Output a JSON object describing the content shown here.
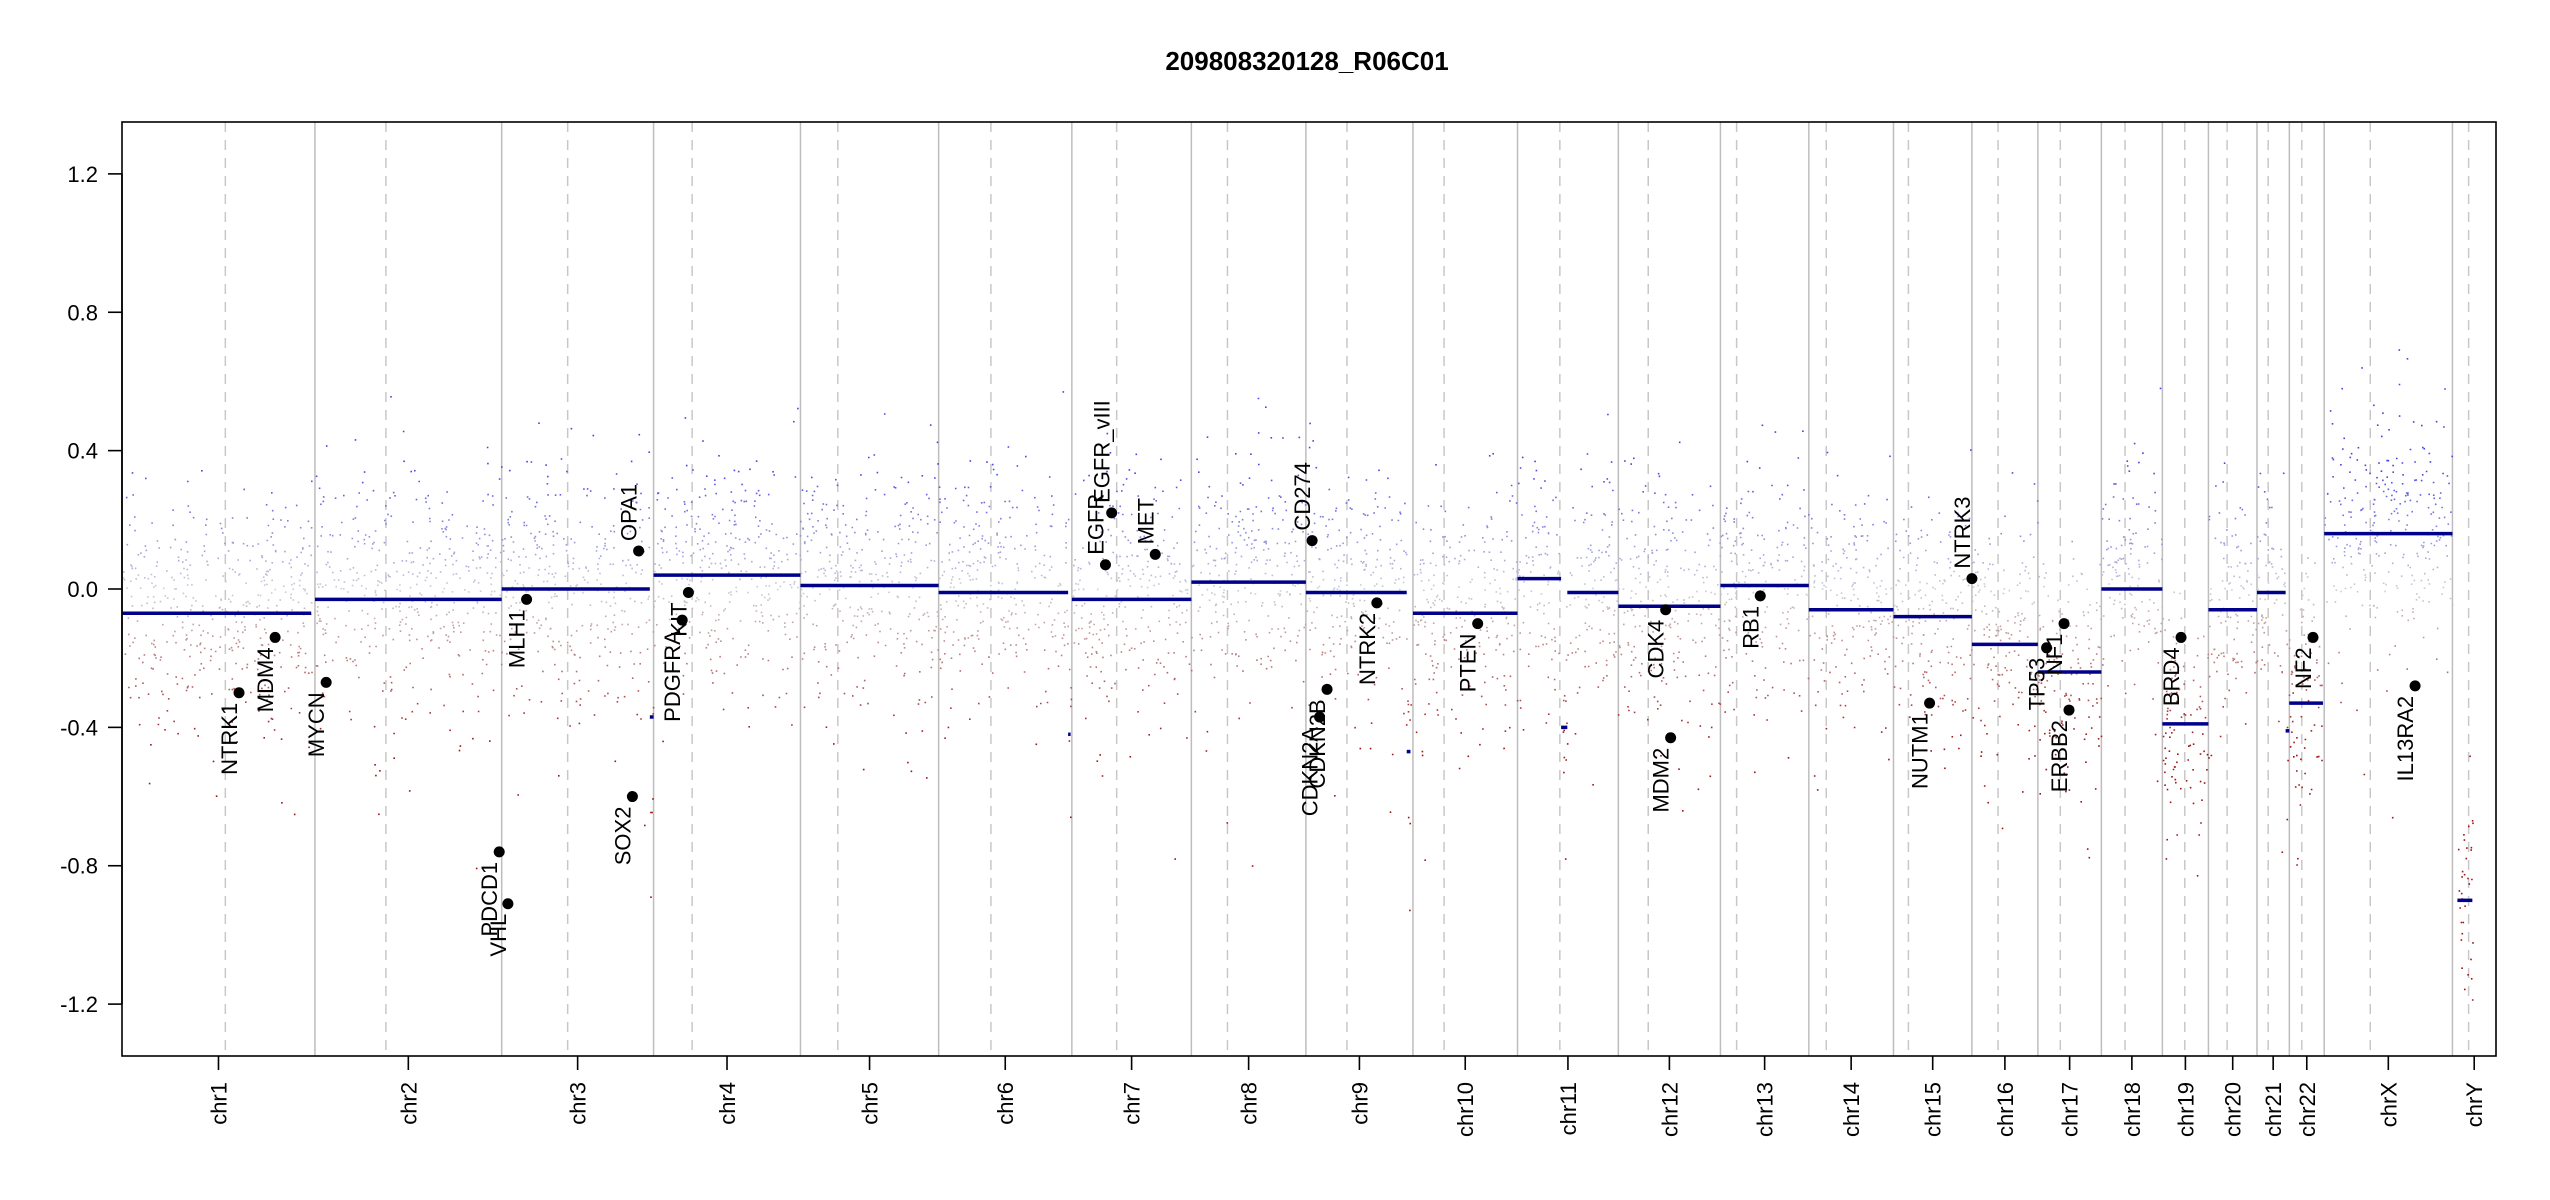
{
  "chart_data": {
    "type": "scatter",
    "title": "209808320128_R06C01",
    "xlabel": "",
    "ylabel": "",
    "ylim": [
      -1.35,
      1.35
    ],
    "yticks": [
      -1.2,
      -0.8,
      -0.4,
      0.0,
      0.4,
      0.8,
      1.2
    ],
    "ytick_labels": [
      "-1.2",
      "-0.8",
      "-0.4",
      "0.0",
      "0.4",
      "0.8",
      "1.2"
    ],
    "chromosomes": [
      {
        "name": "chr1",
        "start": 0,
        "end": 7.75,
        "centromere": 4.15
      },
      {
        "name": "chr2",
        "start": 7.75,
        "end": 15.25,
        "centromere": 10.6
      },
      {
        "name": "chr3",
        "start": 15.25,
        "end": 21.35,
        "centromere": 17.9
      },
      {
        "name": "chr4",
        "start": 21.35,
        "end": 27.25,
        "centromere": 22.9
      },
      {
        "name": "chr5",
        "start": 27.25,
        "end": 32.8,
        "centromere": 28.75
      },
      {
        "name": "chr6",
        "start": 32.8,
        "end": 38.15,
        "centromere": 34.9
      },
      {
        "name": "chr7",
        "start": 38.15,
        "end": 42.95,
        "centromere": 39.95
      },
      {
        "name": "chr8",
        "start": 42.95,
        "end": 47.55,
        "centromere": 44.4
      },
      {
        "name": "chr9",
        "start": 47.55,
        "end": 51.85,
        "centromere": 49.2
      },
      {
        "name": "chr10",
        "start": 51.85,
        "end": 56.05,
        "centromere": 53.1
      },
      {
        "name": "chr11",
        "start": 56.05,
        "end": 60.1,
        "centromere": 57.75
      },
      {
        "name": "chr12",
        "start": 60.1,
        "end": 64.2,
        "centromere": 61.3
      },
      {
        "name": "chr13",
        "start": 64.2,
        "end": 67.75,
        "centromere": 64.85
      },
      {
        "name": "chr14",
        "start": 67.75,
        "end": 71.15,
        "centromere": 68.45
      },
      {
        "name": "chr15",
        "start": 71.15,
        "end": 74.3,
        "centromere": 71.75
      },
      {
        "name": "chr16",
        "start": 74.3,
        "end": 76.95,
        "centromere": 75.35
      },
      {
        "name": "chr17",
        "start": 76.95,
        "end": 79.5,
        "centromere": 77.85
      },
      {
        "name": "chr18",
        "start": 79.5,
        "end": 81.95,
        "centromere": 80.45
      },
      {
        "name": "chr19",
        "start": 81.95,
        "end": 83.8,
        "centromere": 82.85
      },
      {
        "name": "chr20",
        "start": 83.8,
        "end": 85.75,
        "centromere": 84.55
      },
      {
        "name": "chr21",
        "start": 85.75,
        "end": 87.05,
        "centromere": 86.2
      },
      {
        "name": "chr22",
        "start": 87.05,
        "end": 88.45,
        "centromere": 87.55
      },
      {
        "name": "chrX",
        "start": 88.45,
        "end": 93.6,
        "centromere": 90.3
      },
      {
        "name": "chrY",
        "start": 93.6,
        "end": 95.35,
        "centromere": 94.25
      }
    ],
    "segments": [
      {
        "x0": 0,
        "x1": 7.6,
        "y": -0.07
      },
      {
        "x0": 7.75,
        "x1": 15.25,
        "y": -0.03
      },
      {
        "x0": 15.25,
        "x1": 21.2,
        "y": 0.0
      },
      {
        "x0": 21.2,
        "x1": 21.35,
        "y": -0.37
      },
      {
        "x0": 21.35,
        "x1": 27.25,
        "y": 0.04
      },
      {
        "x0": 27.25,
        "x1": 32.8,
        "y": 0.01
      },
      {
        "x0": 32.8,
        "x1": 38.0,
        "y": -0.01
      },
      {
        "x0": 38.0,
        "x1": 38.1,
        "y": -0.42
      },
      {
        "x0": 38.15,
        "x1": 42.95,
        "y": -0.03
      },
      {
        "x0": 42.95,
        "x1": 47.55,
        "y": 0.02
      },
      {
        "x0": 47.55,
        "x1": 51.6,
        "y": -0.01
      },
      {
        "x0": 51.6,
        "x1": 51.75,
        "y": -0.47
      },
      {
        "x0": 51.85,
        "x1": 56.05,
        "y": -0.07
      },
      {
        "x0": 56.05,
        "x1": 57.8,
        "y": 0.03
      },
      {
        "x0": 57.8,
        "x1": 58.05,
        "y": -0.4
      },
      {
        "x0": 58.05,
        "x1": 60.1,
        "y": -0.01
      },
      {
        "x0": 60.1,
        "x1": 64.2,
        "y": -0.05
      },
      {
        "x0": 64.2,
        "x1": 67.75,
        "y": 0.01
      },
      {
        "x0": 67.75,
        "x1": 71.15,
        "y": -0.06
      },
      {
        "x0": 71.15,
        "x1": 74.3,
        "y": -0.08
      },
      {
        "x0": 74.3,
        "x1": 76.95,
        "y": -0.16
      },
      {
        "x0": 76.95,
        "x1": 79.5,
        "y": -0.24
      },
      {
        "x0": 79.5,
        "x1": 81.95,
        "y": 0.0
      },
      {
        "x0": 81.95,
        "x1": 83.8,
        "y": -0.39
      },
      {
        "x0": 83.8,
        "x1": 85.75,
        "y": -0.06
      },
      {
        "x0": 85.75,
        "x1": 86.9,
        "y": -0.01
      },
      {
        "x0": 86.9,
        "x1": 87.05,
        "y": -0.41
      },
      {
        "x0": 87.05,
        "x1": 88.4,
        "y": -0.33
      },
      {
        "x0": 88.45,
        "x1": 93.6,
        "y": 0.16
      },
      {
        "x0": 93.8,
        "x1": 94.4,
        "y": -0.9
      }
    ],
    "genes": [
      {
        "name": "NTRK1",
        "x": 4.7,
        "y": -0.3,
        "label_above": false
      },
      {
        "name": "MDM4",
        "x": 6.15,
        "y": -0.14,
        "label_above": false
      },
      {
        "name": "MYCN",
        "x": 8.2,
        "y": -0.27,
        "label_above": false
      },
      {
        "name": "PDCD1",
        "x": 15.15,
        "y": -0.76,
        "label_above": false
      },
      {
        "name": "VHL",
        "x": 15.5,
        "y": -0.91,
        "label_above": false
      },
      {
        "name": "MLH1",
        "x": 16.25,
        "y": -0.03,
        "label_above": false
      },
      {
        "name": "SOX2",
        "x": 20.5,
        "y": -0.6,
        "label_above": false
      },
      {
        "name": "OPA1",
        "x": 20.75,
        "y": 0.11,
        "label_above": true
      },
      {
        "name": "PDGFRA",
        "x": 22.5,
        "y": -0.09,
        "label_above": false
      },
      {
        "name": "KIT",
        "x": 22.75,
        "y": -0.01,
        "label_above": false
      },
      {
        "name": "EGFR",
        "x": 39.5,
        "y": 0.07,
        "label_above": true
      },
      {
        "name": "EGFR_vIII",
        "x": 39.75,
        "y": 0.22,
        "label_above": true
      },
      {
        "name": "MET",
        "x": 41.5,
        "y": 0.1,
        "label_above": true
      },
      {
        "name": "CD274",
        "x": 47.8,
        "y": 0.14,
        "label_above": true
      },
      {
        "name": "CDKN2A",
        "x": 48.1,
        "y": -0.37,
        "label_above": false
      },
      {
        "name": "CDKN2B",
        "x": 48.4,
        "y": -0.29,
        "label_above": false
      },
      {
        "name": "NTRK2",
        "x": 50.4,
        "y": -0.04,
        "label_above": false
      },
      {
        "name": "PTEN",
        "x": 54.45,
        "y": -0.1,
        "label_above": false
      },
      {
        "name": "CDK4",
        "x": 62.0,
        "y": -0.06,
        "label_above": false
      },
      {
        "name": "MDM2",
        "x": 62.2,
        "y": -0.43,
        "label_above": false
      },
      {
        "name": "RB1",
        "x": 65.8,
        "y": -0.02,
        "label_above": false
      },
      {
        "name": "NUTM1",
        "x": 72.6,
        "y": -0.33,
        "label_above": false
      },
      {
        "name": "NTRK3",
        "x": 74.3,
        "y": 0.03,
        "label_above": true
      },
      {
        "name": "TP53",
        "x": 77.3,
        "y": -0.17,
        "label_above": false
      },
      {
        "name": "NF1",
        "x": 78.0,
        "y": -0.1,
        "label_above": false
      },
      {
        "name": "ERBB2",
        "x": 78.2,
        "y": -0.35,
        "label_above": false
      },
      {
        "name": "BRD4",
        "x": 82.7,
        "y": -0.14,
        "label_above": false
      },
      {
        "name": "NF2",
        "x": 88.0,
        "y": -0.14,
        "label_above": false
      },
      {
        "name": "IL13RA2",
        "x": 92.1,
        "y": -0.28,
        "label_above": false
      }
    ]
  }
}
